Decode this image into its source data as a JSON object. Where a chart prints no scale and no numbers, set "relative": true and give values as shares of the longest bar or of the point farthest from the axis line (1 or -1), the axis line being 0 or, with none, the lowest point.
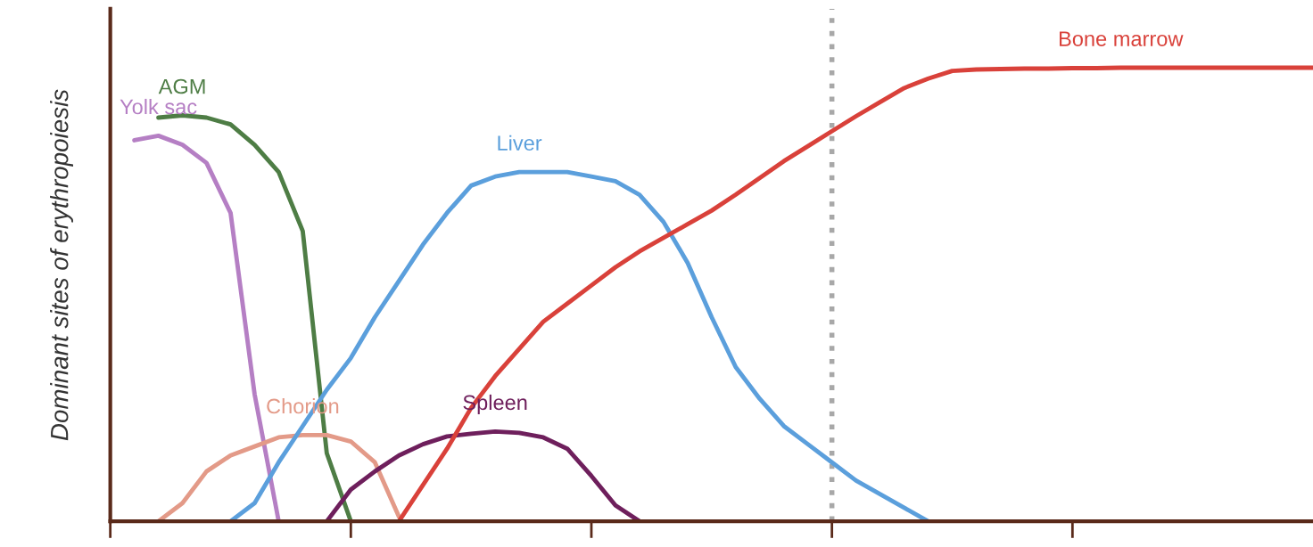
{
  "chart_data": {
    "type": "line",
    "ylabel": "Dominant sites of erythropoiesis",
    "relative": true,
    "categories": [
      null,
      null,
      null,
      null,
      null,
      null,
      null,
      null,
      null,
      null,
      null,
      null,
      null,
      null,
      null,
      null,
      null,
      null,
      null,
      null,
      null,
      null,
      null,
      null,
      null,
      null,
      null,
      null,
      null,
      null,
      null,
      null,
      null,
      null,
      null,
      null,
      null,
      null,
      null,
      null,
      null,
      null,
      null,
      null,
      null,
      null,
      null,
      null,
      null,
      null,
      null
    ],
    "grid": false,
    "legend": false,
    "marker": "none",
    "line_style": "solid",
    "series": [
      {
        "name": "Yolk sac",
        "color": "#b57fc4",
        "values": [
          null,
          0.84,
          0.85,
          0.83,
          0.79,
          0.68,
          0.28,
          0,
          null,
          null,
          null,
          null,
          null,
          null,
          null,
          null,
          null,
          null,
          null,
          null,
          null,
          null,
          null,
          null,
          null,
          null,
          null,
          null,
          null,
          null,
          null,
          null,
          null,
          null,
          null,
          null,
          null,
          null,
          null,
          null,
          null,
          null,
          null,
          null,
          null,
          null,
          null,
          null,
          null,
          null,
          null
        ]
      },
      {
        "name": "AGM",
        "color": "#4e7d45",
        "values": [
          null,
          null,
          0.89,
          0.895,
          0.89,
          0.875,
          0.83,
          0.77,
          0.64,
          0.15,
          0,
          null,
          null,
          null,
          null,
          null,
          null,
          null,
          null,
          null,
          null,
          null,
          null,
          null,
          null,
          null,
          null,
          null,
          null,
          null,
          null,
          null,
          null,
          null,
          null,
          null,
          null,
          null,
          null,
          null,
          null,
          null,
          null,
          null,
          null,
          null,
          null,
          null,
          null,
          null,
          null
        ]
      },
      {
        "name": "Chorion",
        "color": "#e39a88",
        "values": [
          null,
          null,
          0,
          0.04,
          0.11,
          0.145,
          0.165,
          0.185,
          0.19,
          0.19,
          0.176,
          0.13,
          0.01,
          null,
          null,
          null,
          null,
          null,
          null,
          null,
          null,
          null,
          null,
          null,
          null,
          null,
          null,
          null,
          null,
          null,
          null,
          null,
          null,
          null,
          null,
          null,
          null,
          null,
          null,
          null,
          null,
          null,
          null,
          null,
          null,
          null,
          null,
          null,
          null,
          null,
          null
        ]
      },
      {
        "name": "Liver",
        "color": "#5b9fdc",
        "values": [
          null,
          null,
          null,
          null,
          null,
          0,
          0.04,
          0.13,
          0.21,
          0.29,
          0.36,
          0.45,
          0.53,
          0.61,
          0.68,
          0.74,
          0.76,
          0.77,
          0.77,
          0.77,
          0.76,
          0.75,
          0.72,
          0.66,
          0.57,
          0.45,
          0.34,
          0.27,
          0.21,
          0.17,
          0.13,
          0.09,
          0.06,
          0.03,
          0,
          null,
          null,
          null,
          null,
          null,
          null,
          null,
          null,
          null,
          null,
          null,
          null,
          null,
          null,
          null,
          null
        ]
      },
      {
        "name": "Spleen",
        "color": "#6e1f5c",
        "values": [
          null,
          null,
          null,
          null,
          null,
          null,
          null,
          null,
          null,
          0,
          0.07,
          0.11,
          0.145,
          0.17,
          0.187,
          0.193,
          0.198,
          0.195,
          0.185,
          0.16,
          0.1,
          0.035,
          0,
          null,
          null,
          null,
          null,
          null,
          null,
          null,
          null,
          null,
          null,
          null,
          null,
          null,
          null,
          null,
          null,
          null,
          null,
          null,
          null,
          null,
          null,
          null,
          null,
          null,
          null,
          null,
          null
        ]
      },
      {
        "name": "Bone marrow",
        "color": "#d9413a",
        "values": [
          null,
          null,
          null,
          null,
          null,
          null,
          null,
          null,
          null,
          null,
          null,
          null,
          0,
          0.08,
          0.16,
          0.25,
          0.32,
          0.38,
          0.44,
          0.48,
          0.52,
          0.56,
          0.595,
          0.625,
          0.655,
          0.685,
          0.72,
          0.757,
          0.794,
          0.827,
          0.86,
          0.893,
          0.924,
          0.955,
          0.976,
          0.993,
          0.996,
          0.997,
          0.998,
          0.998,
          0.999,
          0.999,
          1,
          1,
          1,
          1,
          1,
          1,
          1,
          1,
          1
        ]
      }
    ]
  }
}
